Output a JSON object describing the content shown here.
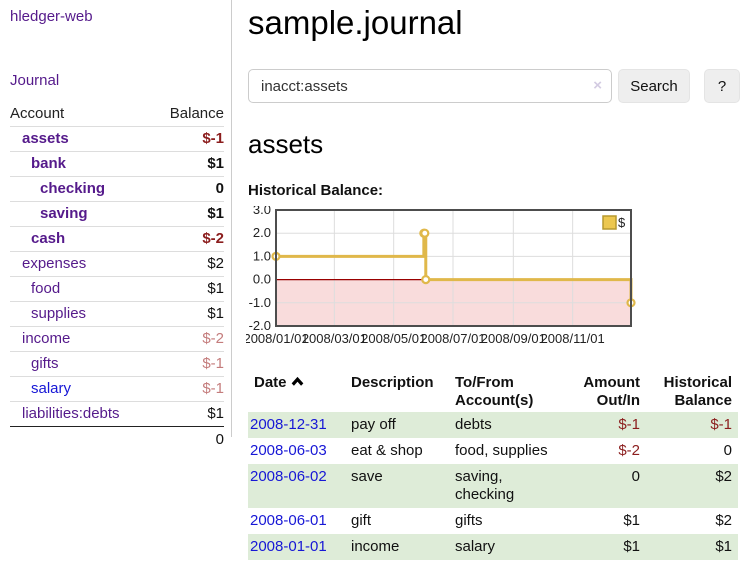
{
  "colors": {
    "purple_link": "#551a8b",
    "blue_link": "#1717d6",
    "negative_dark": "#8b1d1d",
    "negative_dim": "#c47c7c",
    "row_highlight_green": "#deecd8",
    "chart_line_gold": "#e0b84a",
    "chart_negative_fill": "#f9dcdc",
    "chart_zero_line": "#990000"
  },
  "sidebar": {
    "brand": "hledger-web",
    "journal_label": "Journal",
    "accounts_table": {
      "headers": {
        "account": "Account",
        "balance": "Balance"
      },
      "rows": [
        {
          "name": "assets",
          "level": 1,
          "bold": true,
          "balance": "$-1"
        },
        {
          "name": "bank",
          "level": 2,
          "bold": true,
          "balance": "$1"
        },
        {
          "name": "checking",
          "level": 3,
          "bold": true,
          "balance": "0"
        },
        {
          "name": "saving",
          "level": 3,
          "bold": true,
          "balance": "$1"
        },
        {
          "name": "cash",
          "level": 2,
          "bold": true,
          "balance": "$-2"
        },
        {
          "name": "expenses",
          "level": 1,
          "bold": false,
          "balance": "$2"
        },
        {
          "name": "food",
          "level": 2,
          "bold": false,
          "balance": "$1"
        },
        {
          "name": "supplies",
          "level": 2,
          "bold": false,
          "balance": "$1"
        },
        {
          "name": "income",
          "level": 1,
          "bold": false,
          "balance": "$-2"
        },
        {
          "name": "gifts",
          "level": 2,
          "bold": false,
          "balance": "$-1"
        },
        {
          "name": "salary",
          "level": 2,
          "bold": false,
          "balance": "$-1",
          "link_color": "blue"
        },
        {
          "name": "liabilities:debts",
          "level": 1,
          "bold": false,
          "balance": "$1"
        }
      ],
      "total": "0"
    }
  },
  "header": {
    "title": "sample.journal"
  },
  "search": {
    "value": "inacct:assets",
    "clear_icon": "×",
    "search_label": "Search",
    "help_label": "?"
  },
  "account_page": {
    "heading": "assets",
    "chart_title": "Historical Balance:"
  },
  "chart_data": {
    "type": "line",
    "title": "Historical Balance:",
    "step": true,
    "legend_position": "top-right",
    "series": [
      {
        "name": "$",
        "color": "#e0b84a",
        "points": [
          {
            "date": "2008-01-01",
            "day": 0,
            "value": 1
          },
          {
            "date": "2008-06-01",
            "day": 152,
            "value": 2
          },
          {
            "date": "2008-06-02",
            "day": 153,
            "value": 2
          },
          {
            "date": "2008-06-03",
            "day": 154,
            "value": 0
          },
          {
            "date": "2008-12-31",
            "day": 365,
            "value": -1
          }
        ]
      }
    ],
    "x_ticks": [
      {
        "label": "2008/01/01",
        "day": 0
      },
      {
        "label": "2008/03/01",
        "day": 60
      },
      {
        "label": "2008/05/01",
        "day": 121
      },
      {
        "label": "2008/07/01",
        "day": 182
      },
      {
        "label": "2008/09/01",
        "day": 244
      },
      {
        "label": "2008/11/01",
        "day": 305
      }
    ],
    "y_ticks": [
      3.0,
      2.0,
      1.0,
      0.0,
      -1.0,
      -2.0
    ],
    "ylim": [
      -2,
      3
    ],
    "xlim_days": [
      0,
      365
    ]
  },
  "register": {
    "headers": [
      {
        "line1": "Date",
        "line2": "",
        "sort": "asc"
      },
      {
        "line1": "Description",
        "line2": ""
      },
      {
        "line1": "To/From",
        "line2": "Account(s)"
      },
      {
        "line1": "Amount",
        "line2": "Out/In"
      },
      {
        "line1": "Historical",
        "line2": "Balance"
      }
    ],
    "rows": [
      {
        "date": "2008-12-31",
        "description": "pay off",
        "accounts": "debts",
        "amount": "$-1",
        "balance": "$-1"
      },
      {
        "date": "2008-06-03",
        "description": "eat & shop",
        "accounts": "food, supplies",
        "amount": "$-2",
        "balance": "0"
      },
      {
        "date": "2008-06-02",
        "description": "save",
        "accounts": "saving, checking",
        "amount": "0",
        "balance": "$2"
      },
      {
        "date": "2008-06-01",
        "description": "gift",
        "accounts": "gifts",
        "amount": "$1",
        "balance": "$2"
      },
      {
        "date": "2008-01-01",
        "description": "income",
        "accounts": "salary",
        "amount": "$1",
        "balance": "$1"
      }
    ]
  }
}
